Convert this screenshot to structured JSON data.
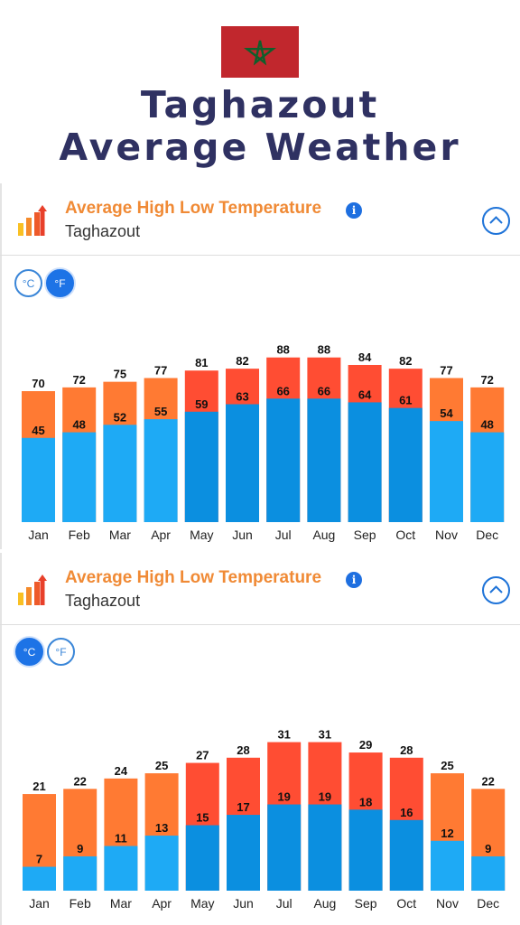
{
  "header": {
    "flag_icon": "morocco-flag-icon",
    "title_line1": "Taghazout",
    "title_line2": "Average Weather"
  },
  "colors": {
    "title": "#2f3162",
    "card_title": "#f08a35",
    "accent_blue": "#1d73e6",
    "high_bar_light": "#ff7a33",
    "high_bar_dark": "#ff4d33",
    "low_bar_light": "#1eaaf5",
    "low_bar_dark": "#0b8fe0"
  },
  "fahrenheit_card": {
    "title": "Average High Low Temperature",
    "subtitle": "Taghazout",
    "info_icon_label": "i",
    "collapse_icon": "chevron-up-icon",
    "unit_c": "°C",
    "unit_f": "°F",
    "active_unit": "F"
  },
  "celsius_card": {
    "title": "Average High Low Temperature",
    "subtitle": "Taghazout",
    "info_icon_label": "i",
    "collapse_icon": "chevron-up-icon",
    "unit_c": "°C",
    "unit_f": "°F",
    "active_unit": "C"
  },
  "chart_data": [
    {
      "type": "bar",
      "unit": "°F",
      "categories": [
        "Jan",
        "Feb",
        "Mar",
        "Apr",
        "May",
        "Jun",
        "Jul",
        "Aug",
        "Sep",
        "Oct",
        "Nov",
        "Dec"
      ],
      "series": [
        {
          "values": [
            70,
            72,
            75,
            77,
            81,
            82,
            88,
            88,
            84,
            82,
            77,
            72
          ]
        },
        {
          "values": [
            45,
            48,
            52,
            55,
            59,
            63,
            66,
            66,
            64,
            61,
            54,
            48
          ]
        }
      ],
      "grid": false
    },
    {
      "type": "bar",
      "unit": "°C",
      "categories": [
        "Jan",
        "Feb",
        "Mar",
        "Apr",
        "May",
        "Jun",
        "Jul",
        "Aug",
        "Sep",
        "Oct",
        "Nov",
        "Dec"
      ],
      "series": [
        {
          "values": [
            21,
            22,
            24,
            25,
            27,
            28,
            31,
            31,
            29,
            28,
            25,
            22
          ]
        },
        {
          "values": [
            7,
            9,
            11,
            13,
            15,
            17,
            19,
            19,
            18,
            16,
            12,
            9
          ]
        }
      ],
      "grid": false
    }
  ]
}
